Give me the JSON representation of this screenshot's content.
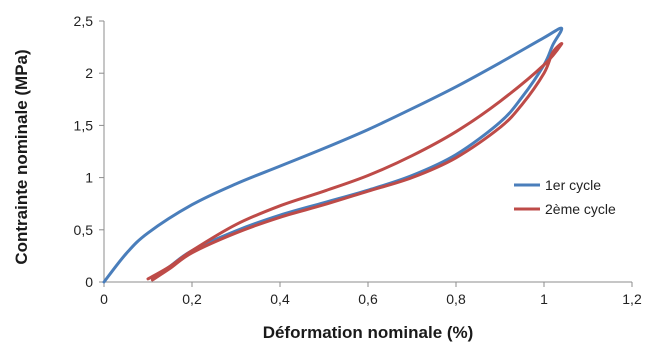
{
  "chart_data": {
    "type": "line",
    "title": "",
    "xlabel": "Déformation nominale (%)",
    "ylabel": "Contrainte nominale (MPa)",
    "xlim": [
      0,
      1.2
    ],
    "ylim": [
      0,
      2.5
    ],
    "x_ticks": [
      "0",
      "0,2",
      "0,4",
      "0,6",
      "0,8",
      "1",
      "1,2"
    ],
    "y_ticks": [
      "0",
      "0,5",
      "1",
      "1,5",
      "2",
      "2,5"
    ],
    "grid": false,
    "legend_position": "right",
    "series": [
      {
        "name": "1er cycle",
        "color": "#4a7ebb",
        "x": [
          0,
          0.05,
          0.1,
          0.2,
          0.3,
          0.4,
          0.5,
          0.6,
          0.7,
          0.8,
          0.9,
          1.0,
          1.04,
          1.02,
          1.0,
          0.95,
          0.9,
          0.8,
          0.7,
          0.6,
          0.5,
          0.4,
          0.3,
          0.2,
          0.15,
          0.11
        ],
        "y": [
          0,
          0.27,
          0.47,
          0.74,
          0.94,
          1.11,
          1.28,
          1.46,
          1.66,
          1.87,
          2.1,
          2.34,
          2.43,
          2.27,
          2.08,
          1.77,
          1.53,
          1.22,
          1.02,
          0.88,
          0.76,
          0.64,
          0.49,
          0.3,
          0.15,
          0.03
        ]
      },
      {
        "name": "2ème cycle",
        "color": "#be4b48",
        "x": [
          0.1,
          0.15,
          0.2,
          0.3,
          0.4,
          0.5,
          0.6,
          0.7,
          0.8,
          0.9,
          1.0,
          1.04,
          1.02,
          1.0,
          0.95,
          0.9,
          0.8,
          0.7,
          0.6,
          0.5,
          0.4,
          0.3,
          0.2,
          0.15,
          0.11
        ],
        "y": [
          0.03,
          0.15,
          0.3,
          0.55,
          0.73,
          0.87,
          1.02,
          1.21,
          1.44,
          1.73,
          2.08,
          2.28,
          2.2,
          2.0,
          1.7,
          1.48,
          1.19,
          1.0,
          0.87,
          0.74,
          0.62,
          0.47,
          0.28,
          0.13,
          0.02
        ]
      }
    ]
  }
}
